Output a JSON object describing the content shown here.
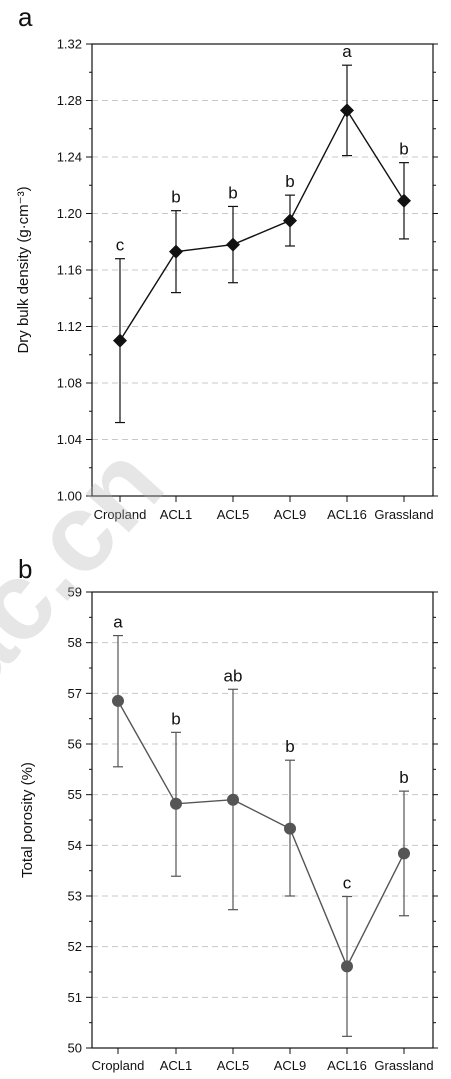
{
  "chart_data": [
    {
      "panel_label": "a",
      "type": "line",
      "categories": [
        "Cropland",
        "ACL1",
        "ACL5",
        "ACL9",
        "ACL16",
        "Grassland"
      ],
      "values": [
        1.11,
        1.173,
        1.178,
        1.195,
        1.273,
        1.209
      ],
      "error_low": [
        1.052,
        1.144,
        1.151,
        1.177,
        1.241,
        1.182
      ],
      "error_high": [
        1.168,
        1.202,
        1.205,
        1.213,
        1.305,
        1.236
      ],
      "significance_letters": [
        "c",
        "b",
        "b",
        "b",
        "a",
        "b"
      ],
      "ylabel": "Dry bulk density (g·cm⁻³)",
      "ylim": [
        1.0,
        1.32
      ],
      "yticks": [
        "1.00",
        "1.04",
        "1.08",
        "1.12",
        "1.16",
        "1.20",
        "1.24",
        "1.28",
        "1.32"
      ],
      "marker": "diamond",
      "color": "#111111",
      "grid": "dashed-horizontal"
    },
    {
      "panel_label": "b",
      "type": "line",
      "categories": [
        "Cropland",
        "ACL1",
        "ACL5",
        "ACL9",
        "ACL16",
        "Grassland"
      ],
      "values": [
        56.85,
        54.82,
        54.9,
        54.33,
        51.61,
        53.84
      ],
      "error_low": [
        55.55,
        53.39,
        52.73,
        53.0,
        50.23,
        52.61
      ],
      "error_high": [
        58.14,
        56.23,
        57.08,
        55.68,
        52.99,
        55.07
      ],
      "significance_letters": [
        "a",
        "b",
        "ab",
        "b",
        "c",
        "b"
      ],
      "ylabel": "Total porosity (%)",
      "ylim": [
        50,
        59
      ],
      "yticks": [
        "50",
        "51",
        "52",
        "53",
        "54",
        "55",
        "56",
        "57",
        "58",
        "59"
      ],
      "marker": "circle",
      "color": "#555555",
      "grid": "dashed-horizontal"
    }
  ],
  "watermark": ".ac.cn"
}
